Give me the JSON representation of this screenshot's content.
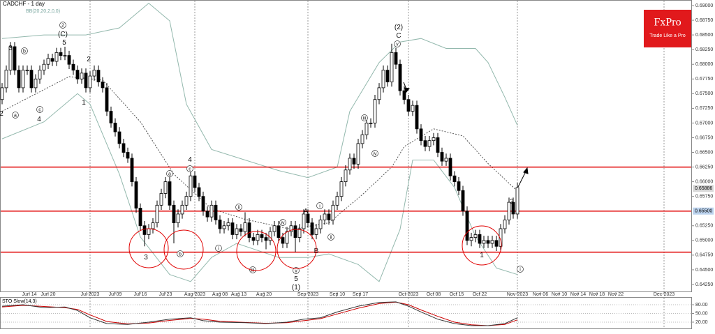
{
  "chart_data": {
    "type": "candlestick",
    "title": "CADCHF - 1 day",
    "subtitle": "BB(20,20,2,0,0)",
    "logo": {
      "name": "FxPro",
      "tagline": "Trade Like a Pro"
    },
    "series": [
      {
        "color": "#000000",
        "open": [
          0.674,
          0.676,
          0.679,
          0.683,
          0.679,
          0.676,
          0.679,
          0.679,
          0.676,
          0.6775,
          0.679,
          0.68,
          0.681,
          0.6805,
          0.682,
          0.6815,
          0.6815,
          0.68,
          0.679,
          0.6775,
          0.6785,
          0.676,
          0.678,
          0.679,
          0.677,
          0.676,
          0.672,
          0.67,
          0.6685,
          0.6665,
          0.665,
          0.664,
          0.66,
          0.6555,
          0.6525,
          0.651,
          0.652,
          0.653,
          0.656,
          0.658,
          0.66,
          0.656,
          0.653,
          0.6545,
          0.656,
          0.6575,
          0.661,
          0.659,
          0.6575,
          0.655,
          0.654,
          0.656,
          0.6535,
          0.652,
          0.6525,
          0.653,
          0.651,
          0.652,
          0.6515,
          0.653,
          0.6505,
          0.65,
          0.651,
          0.6505,
          0.65,
          0.6515,
          0.6525,
          0.6505,
          0.6495,
          0.6515,
          0.6525,
          0.6505,
          0.652,
          0.6545,
          0.653,
          0.651,
          0.652,
          0.6535,
          0.6545,
          0.6535,
          0.656,
          0.6575,
          0.66,
          0.662,
          0.664,
          0.663,
          0.6665,
          0.668,
          0.67,
          0.67,
          0.674,
          0.676,
          0.679,
          0.677,
          0.682,
          0.68,
          0.6755,
          0.674,
          0.672,
          0.673,
          0.669,
          0.667,
          0.666,
          0.667,
          0.6675,
          0.665,
          0.6635,
          0.664,
          0.661,
          0.66,
          0.6585,
          0.655,
          0.65,
          0.6505,
          0.651,
          0.6495,
          0.65,
          0.6495,
          0.65,
          0.649,
          0.652,
          0.6535,
          0.6565,
          0.6545
        ],
        "high": [
          0.6768,
          0.6798,
          0.6838,
          0.6838,
          0.6798,
          0.6798,
          0.6798,
          0.6798,
          0.6783,
          0.6798,
          0.6808,
          0.6818,
          0.6818,
          0.6828,
          0.6828,
          0.683,
          0.6823,
          0.6808,
          0.6798,
          0.6793,
          0.6793,
          0.6788,
          0.6798,
          0.6798,
          0.6778,
          0.6768,
          0.6728,
          0.6708,
          0.6693,
          0.6673,
          0.6658,
          0.6648,
          0.6608,
          0.6563,
          0.6533,
          0.6528,
          0.6538,
          0.6568,
          0.6588,
          0.6608,
          0.6608,
          0.6568,
          0.6553,
          0.6568,
          0.6583,
          0.6618,
          0.6618,
          0.6598,
          0.6583,
          0.6558,
          0.6568,
          0.6568,
          0.6543,
          0.6533,
          0.6538,
          0.6538,
          0.6528,
          0.6528,
          0.6548,
          0.6538,
          0.6513,
          0.6518,
          0.6518,
          0.6513,
          0.6523,
          0.6533,
          0.6533,
          0.6513,
          0.6523,
          0.6533,
          0.6533,
          0.6528,
          0.6553,
          0.6553,
          0.6538,
          0.6528,
          0.6543,
          0.6553,
          0.6553,
          0.6568,
          0.6583,
          0.6608,
          0.6628,
          0.6648,
          0.6648,
          0.6673,
          0.6688,
          0.6708,
          0.6708,
          0.6748,
          0.6768,
          0.6798,
          0.6798,
          0.6835,
          0.6828,
          0.6808,
          0.6763,
          0.6748,
          0.6738,
          0.6738,
          0.6698,
          0.6678,
          0.6678,
          0.6683,
          0.6683,
          0.6658,
          0.6648,
          0.6648,
          0.6618,
          0.6608,
          0.6593,
          0.6558,
          0.6513,
          0.6518,
          0.6518,
          0.6508,
          0.6508,
          0.6508,
          0.6508,
          0.6528,
          0.6543,
          0.6573,
          0.6573,
          0.6598
        ],
        "low": [
          0.6732,
          0.6752,
          0.6782,
          0.6782,
          0.6752,
          0.6752,
          0.6782,
          0.6752,
          0.6752,
          0.6767,
          0.6782,
          0.6792,
          0.6797,
          0.6797,
          0.6807,
          0.6807,
          0.6792,
          0.6782,
          0.6767,
          0.6767,
          0.6752,
          0.6752,
          0.6772,
          0.6762,
          0.6752,
          0.6712,
          0.6692,
          0.6677,
          0.6657,
          0.6642,
          0.6632,
          0.6592,
          0.6547,
          0.6517,
          0.649,
          0.6502,
          0.6512,
          0.6522,
          0.6552,
          0.6572,
          0.6552,
          0.6495,
          0.6522,
          0.6537,
          0.6552,
          0.6567,
          0.6582,
          0.6567,
          0.6542,
          0.6532,
          0.6532,
          0.6527,
          0.6512,
          0.6512,
          0.6517,
          0.6502,
          0.6502,
          0.6507,
          0.6507,
          0.6497,
          0.6492,
          0.6492,
          0.6497,
          0.6485,
          0.6492,
          0.6507,
          0.6497,
          0.6487,
          0.6487,
          0.6507,
          0.648,
          0.6497,
          0.6512,
          0.6522,
          0.6502,
          0.6502,
          0.6512,
          0.6527,
          0.6527,
          0.6527,
          0.6552,
          0.6567,
          0.6592,
          0.6612,
          0.6622,
          0.6622,
          0.6657,
          0.6672,
          0.6692,
          0.6692,
          0.6732,
          0.6752,
          0.6762,
          0.6762,
          0.6792,
          0.6747,
          0.6732,
          0.6712,
          0.6712,
          0.6682,
          0.6662,
          0.6652,
          0.6652,
          0.6662,
          0.6642,
          0.6627,
          0.6627,
          0.6602,
          0.6592,
          0.6577,
          0.6542,
          0.6492,
          0.649,
          0.6497,
          0.6487,
          0.6487,
          0.6487,
          0.6487,
          0.6482,
          0.6482,
          0.6512,
          0.6527,
          0.6537,
          0.6537
        ],
        "close": [
          0.676,
          0.679,
          0.683,
          0.679,
          0.676,
          0.679,
          0.679,
          0.676,
          0.6775,
          0.679,
          0.68,
          0.681,
          0.6805,
          0.682,
          0.6815,
          0.6815,
          0.68,
          0.679,
          0.6775,
          0.6785,
          0.676,
          0.678,
          0.679,
          0.677,
          0.676,
          0.672,
          0.67,
          0.6685,
          0.6665,
          0.665,
          0.664,
          0.66,
          0.6555,
          0.6525,
          0.651,
          0.652,
          0.653,
          0.656,
          0.658,
          0.66,
          0.656,
          0.653,
          0.6545,
          0.656,
          0.6575,
          0.661,
          0.659,
          0.6575,
          0.655,
          0.654,
          0.656,
          0.6535,
          0.652,
          0.6525,
          0.653,
          0.651,
          0.652,
          0.6515,
          0.653,
          0.6505,
          0.65,
          0.651,
          0.6505,
          0.65,
          0.6515,
          0.6525,
          0.6505,
          0.6495,
          0.6515,
          0.6525,
          0.6505,
          0.652,
          0.6545,
          0.653,
          0.651,
          0.652,
          0.6535,
          0.6545,
          0.6535,
          0.656,
          0.6575,
          0.66,
          0.662,
          0.664,
          0.663,
          0.6665,
          0.668,
          0.67,
          0.67,
          0.674,
          0.676,
          0.679,
          0.677,
          0.682,
          0.68,
          0.6755,
          0.674,
          0.672,
          0.673,
          0.669,
          0.667,
          0.666,
          0.667,
          0.6675,
          0.665,
          0.6635,
          0.664,
          0.661,
          0.66,
          0.6585,
          0.655,
          0.65,
          0.6505,
          0.651,
          0.6495,
          0.65,
          0.6495,
          0.65,
          0.649,
          0.652,
          0.6535,
          0.6565,
          0.6545,
          0.659
        ]
      }
    ],
    "bollinger": {
      "upper": {
        "color": "#93b8ad",
        "x": [
          0,
          10,
          20,
          28,
          35,
          40,
          44,
          50,
          58,
          66,
          73,
          80,
          83,
          90,
          95,
          100,
          106,
          113,
          116,
          120,
          123
        ],
        "values": [
          0.6844,
          0.685,
          0.685,
          0.6862,
          0.6904,
          0.6874,
          0.6732,
          0.6655,
          0.6637,
          0.6619,
          0.6607,
          0.6625,
          0.672,
          0.6803,
          0.6838,
          0.6844,
          0.6827,
          0.6827,
          0.6803,
          0.6744,
          0.6696
        ]
      },
      "middle": {
        "color": "#555555",
        "x": [
          0,
          16,
          24,
          33,
          41,
          50,
          58,
          69,
          78,
          86,
          93,
          96,
          103,
          110,
          116,
          123
        ],
        "values": [
          0.672,
          0.6779,
          0.6773,
          0.6702,
          0.6613,
          0.6554,
          0.6536,
          0.6519,
          0.653,
          0.6578,
          0.6625,
          0.666,
          0.669,
          0.6678,
          0.6631,
          0.6584
        ]
      },
      "lower": {
        "color": "#93b8ad",
        "x": [
          0,
          10,
          18,
          21,
          28,
          33,
          40,
          45,
          50,
          56,
          66,
          73,
          78,
          85,
          90,
          95,
          98,
          103,
          108,
          113,
          118,
          123
        ],
        "values": [
          0.6673,
          0.6702,
          0.675,
          0.6732,
          0.6613,
          0.6506,
          0.6442,
          0.643,
          0.6471,
          0.6495,
          0.6471,
          0.6471,
          0.6477,
          0.6459,
          0.643,
          0.6519,
          0.6637,
          0.6637,
          0.659,
          0.6507,
          0.6453,
          0.6442
        ]
      }
    },
    "hlines": {
      "color": "#e00000",
      "values": [
        0.6625,
        0.655,
        0.648
      ]
    },
    "price_markers": [
      {
        "value": 0.65886,
        "label": "0.65886",
        "color": "#d9d9d9"
      },
      {
        "value": 0.655,
        "label": "0.65500",
        "color": "#bcd3ee"
      }
    ],
    "xlim": [
      -0.5,
      164.5
    ],
    "xticks": [
      {
        "value": 6.5,
        "label": "Jun 14"
      },
      {
        "value": 11,
        "label": "Jun 20"
      },
      {
        "value": 21,
        "label": "Jul-2023"
      },
      {
        "value": 27,
        "label": "Jul 09"
      },
      {
        "value": 33,
        "label": "Jul 16"
      },
      {
        "value": 39,
        "label": "Jul 23"
      },
      {
        "value": 46,
        "label": "Aug-2023"
      },
      {
        "value": 52,
        "label": "Aug 08"
      },
      {
        "value": 56.5,
        "label": "Aug 13"
      },
      {
        "value": 62.5,
        "label": "Aug 20"
      },
      {
        "value": 73,
        "label": "Sep-2023"
      },
      {
        "value": 80,
        "label": "Sep 10"
      },
      {
        "value": 85.5,
        "label": "Sep 17"
      },
      {
        "value": 97,
        "label": "Oct-2023"
      },
      {
        "value": 103,
        "label": "Oct 08"
      },
      {
        "value": 108.5,
        "label": "Oct 15"
      },
      {
        "value": 114,
        "label": "Oct 22"
      },
      {
        "value": 123,
        "label": "Nov-2023"
      },
      {
        "value": 128.5,
        "label": "Nov 06"
      },
      {
        "value": 133,
        "label": "Nov 10"
      },
      {
        "value": 137.5,
        "label": "Nov 14"
      },
      {
        "value": 142,
        "label": "Nov 18"
      },
      {
        "value": 146.5,
        "label": "Nov 22"
      },
      {
        "value": 158,
        "label": "Dec-2023"
      }
    ],
    "ylim": [
      0.64131,
      0.69095
    ],
    "yticks": [
      {
        "value": 0.69,
        "label": "0.69000"
      },
      {
        "value": 0.6875,
        "label": "0.68750"
      },
      {
        "value": 0.685,
        "label": "0.68500"
      },
      {
        "value": 0.6825,
        "label": "0.68250"
      },
      {
        "value": 0.68,
        "label": "0.68000"
      },
      {
        "value": 0.6775,
        "label": "0.67750"
      },
      {
        "value": 0.675,
        "label": "0.67500"
      },
      {
        "value": 0.6725,
        "label": "0.67250"
      },
      {
        "value": 0.67,
        "label": "0.67000"
      },
      {
        "value": 0.6675,
        "label": "0.66750"
      },
      {
        "value": 0.665,
        "label": "0.66500"
      },
      {
        "value": 0.6625,
        "label": "0.66250"
      },
      {
        "value": 0.66,
        "label": "0.66000"
      },
      {
        "value": 0.6575,
        "label": "0.65750"
      },
      {
        "value": 0.6525,
        "label": "0.65250"
      },
      {
        "value": 0.65,
        "label": "0.65000"
      },
      {
        "value": 0.6475,
        "label": "0.64750"
      },
      {
        "value": 0.645,
        "label": "0.64500"
      },
      {
        "value": 0.6425,
        "label": "0.64250"
      }
    ],
    "annotations": [
      "2",
      "3",
      "b",
      "a",
      "c",
      "4",
      "2",
      "(C)",
      "5",
      "2",
      "1",
      "4",
      "c",
      "a",
      "3",
      "b",
      "ii",
      "i",
      "iii",
      "iv",
      "v",
      "5",
      "(1)",
      "A",
      "B",
      "i",
      "ii",
      "iii",
      "iv",
      "v",
      "(2)",
      "C",
      "2",
      "1",
      "i"
    ],
    "stochastic": {
      "title": "STO Slow(14,3)",
      "ylim": [
        0,
        100
      ],
      "yticks": [
        {
          "value": 80,
          "label": "80.00"
        },
        {
          "value": 50,
          "label": "50.00"
        },
        {
          "value": 20,
          "label": "20.00"
        }
      ],
      "main": {
        "color": "#333333",
        "x": [
          0,
          5,
          10,
          15,
          18,
          21,
          25,
          30,
          35,
          40,
          45,
          48,
          52,
          58,
          63,
          68,
          72,
          76,
          80,
          85,
          90,
          94,
          97,
          100,
          104,
          108,
          112,
          116,
          120,
          123
        ],
        "values": [
          75,
          80,
          70,
          72,
          60,
          35,
          15,
          12,
          20,
          30,
          35,
          25,
          20,
          18,
          15,
          20,
          30,
          35,
          55,
          75,
          88,
          90,
          75,
          55,
          30,
          15,
          8,
          8,
          15,
          35
        ]
      },
      "signal": {
        "color": "#cc0000",
        "x": [
          0,
          5,
          10,
          15,
          18,
          21,
          25,
          30,
          35,
          40,
          45,
          48,
          52,
          58,
          63,
          68,
          72,
          76,
          80,
          85,
          90,
          94,
          97,
          100,
          104,
          108,
          112,
          116,
          120,
          123
        ],
        "values": [
          72,
          78,
          74,
          70,
          64,
          45,
          22,
          14,
          17,
          26,
          33,
          30,
          23,
          19,
          16,
          18,
          25,
          32,
          48,
          68,
          84,
          89,
          80,
          62,
          40,
          20,
          11,
          8,
          12,
          28
        ]
      }
    }
  }
}
